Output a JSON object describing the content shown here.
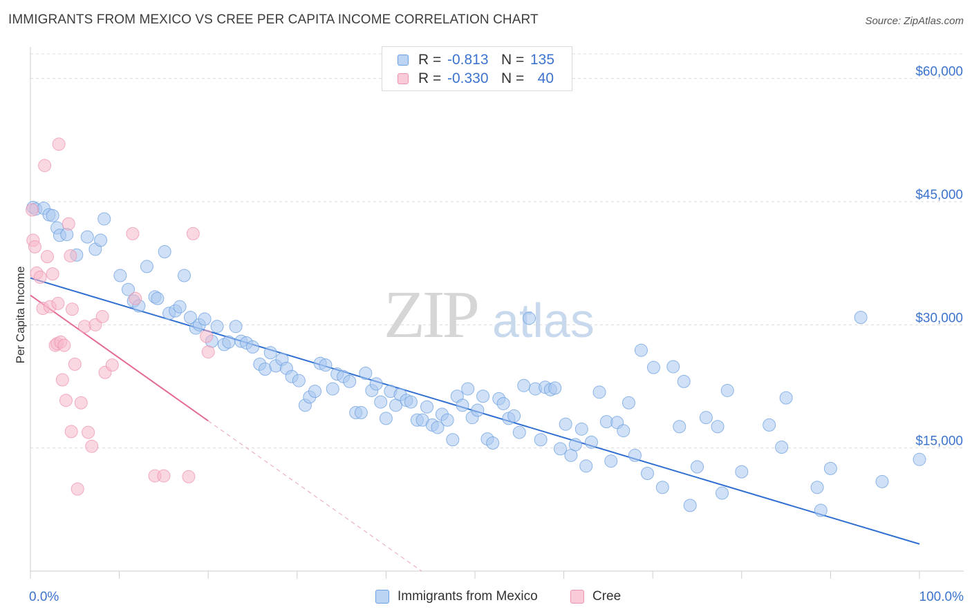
{
  "header": {
    "title": "IMMIGRANTS FROM MEXICO VS CREE PER CAPITA INCOME CORRELATION CHART",
    "source": "Source: ZipAtlas.com"
  },
  "watermark": {
    "text_zip": "ZIP",
    "text_atlas": "atlas"
  },
  "legend_top": {
    "rows": [
      {
        "r_label": "R =",
        "r_value": "-0.813",
        "n_label": "N =",
        "n_value": "135",
        "color": "#a9c8f0"
      },
      {
        "r_label": "R =",
        "r_value": "-0.330",
        "n_label": "N =",
        "n_value": "40",
        "color": "#f6b8cb"
      }
    ]
  },
  "legend_bottom": {
    "items": [
      {
        "label": "Immigrants from Mexico",
        "color": "#a9c8f0"
      },
      {
        "label": "Cree",
        "color": "#f6b8cb"
      }
    ]
  },
  "chart_data": {
    "type": "scatter",
    "title": "IMMIGRANTS FROM MEXICO VS CREE PER CAPITA INCOME CORRELATION CHART",
    "ylabel": "Per Capita Income",
    "xlabel": "",
    "xlim": [
      0,
      100
    ],
    "ylim": [
      0,
      63000
    ],
    "x_tick_labels": [
      "0.0%",
      "100.0%"
    ],
    "y_ticks": [
      15000,
      30000,
      45000,
      60000
    ],
    "y_tick_labels": [
      "$15,000",
      "$30,000",
      "$45,000",
      "$60,000"
    ],
    "grid": "horizontal dashed",
    "series": [
      {
        "name": "Immigrants from Mexico",
        "color": "#a9c8f0",
        "stroke": "#6b9fdf",
        "trend": {
          "x": [
            0,
            100
          ],
          "y": [
            35700,
            3300
          ],
          "color": "#2f6fd1"
        },
        "points": [
          [
            0.3,
            44300
          ],
          [
            0.6,
            44100
          ],
          [
            1.5,
            44200
          ],
          [
            2.1,
            43400
          ],
          [
            2.5,
            43300
          ],
          [
            3.0,
            41800
          ],
          [
            3.3,
            40900
          ],
          [
            4.1,
            41000
          ],
          [
            5.2,
            38500
          ],
          [
            6.4,
            40700
          ],
          [
            7.3,
            39200
          ],
          [
            7.9,
            40300
          ],
          [
            8.3,
            42900
          ],
          [
            10.1,
            36000
          ],
          [
            11.0,
            34300
          ],
          [
            11.6,
            32900
          ],
          [
            12.2,
            32300
          ],
          [
            13.1,
            37100
          ],
          [
            14.0,
            33400
          ],
          [
            14.3,
            33200
          ],
          [
            15.1,
            38900
          ],
          [
            15.6,
            31400
          ],
          [
            16.3,
            31700
          ],
          [
            16.8,
            32200
          ],
          [
            17.3,
            36000
          ],
          [
            18.0,
            30900
          ],
          [
            18.6,
            29600
          ],
          [
            19.0,
            30000
          ],
          [
            19.6,
            30700
          ],
          [
            20.4,
            28000
          ],
          [
            21.0,
            29800
          ],
          [
            21.8,
            27600
          ],
          [
            22.3,
            27900
          ],
          [
            23.1,
            29800
          ],
          [
            23.7,
            28000
          ],
          [
            24.3,
            27800
          ],
          [
            25.0,
            27300
          ],
          [
            25.8,
            25200
          ],
          [
            26.4,
            24600
          ],
          [
            27.0,
            26600
          ],
          [
            27.6,
            25000
          ],
          [
            28.3,
            25800
          ],
          [
            28.8,
            24700
          ],
          [
            29.4,
            23700
          ],
          [
            30.2,
            23200
          ],
          [
            30.9,
            20200
          ],
          [
            31.4,
            21200
          ],
          [
            32.0,
            21900
          ],
          [
            32.6,
            25300
          ],
          [
            33.2,
            25100
          ],
          [
            34.0,
            22200
          ],
          [
            34.5,
            24000
          ],
          [
            35.2,
            23700
          ],
          [
            35.9,
            23100
          ],
          [
            36.6,
            19300
          ],
          [
            37.2,
            19300
          ],
          [
            37.7,
            24100
          ],
          [
            38.4,
            22000
          ],
          [
            38.9,
            22800
          ],
          [
            39.4,
            20600
          ],
          [
            40.0,
            18600
          ],
          [
            40.5,
            21900
          ],
          [
            41.1,
            20200
          ],
          [
            41.6,
            21500
          ],
          [
            42.3,
            20800
          ],
          [
            42.8,
            20600
          ],
          [
            43.5,
            18400
          ],
          [
            44.1,
            18400
          ],
          [
            44.6,
            20000
          ],
          [
            45.2,
            17800
          ],
          [
            45.8,
            17500
          ],
          [
            46.3,
            19100
          ],
          [
            46.9,
            18400
          ],
          [
            47.5,
            16000
          ],
          [
            48.0,
            21300
          ],
          [
            48.6,
            20200
          ],
          [
            49.2,
            22200
          ],
          [
            49.7,
            18700
          ],
          [
            50.3,
            19600
          ],
          [
            50.9,
            21300
          ],
          [
            51.4,
            16100
          ],
          [
            52.0,
            15600
          ],
          [
            52.7,
            21000
          ],
          [
            53.2,
            20400
          ],
          [
            53.8,
            18600
          ],
          [
            54.4,
            18900
          ],
          [
            55.0,
            16900
          ],
          [
            55.5,
            22600
          ],
          [
            56.1,
            30800
          ],
          [
            56.8,
            22200
          ],
          [
            57.4,
            16000
          ],
          [
            57.9,
            22400
          ],
          [
            58.5,
            22100
          ],
          [
            59.0,
            22300
          ],
          [
            59.6,
            14900
          ],
          [
            60.2,
            17900
          ],
          [
            60.8,
            14100
          ],
          [
            61.3,
            15400
          ],
          [
            62.0,
            17300
          ],
          [
            62.5,
            12800
          ],
          [
            63.1,
            15700
          ],
          [
            64.0,
            21800
          ],
          [
            64.8,
            18200
          ],
          [
            65.3,
            13400
          ],
          [
            66.0,
            18100
          ],
          [
            66.7,
            17100
          ],
          [
            67.3,
            20500
          ],
          [
            68.0,
            14100
          ],
          [
            68.7,
            26900
          ],
          [
            69.4,
            11900
          ],
          [
            70.1,
            24800
          ],
          [
            71.1,
            10200
          ],
          [
            72.3,
            24900
          ],
          [
            73.0,
            17600
          ],
          [
            73.5,
            23100
          ],
          [
            74.2,
            8000
          ],
          [
            75.0,
            12700
          ],
          [
            76.0,
            18700
          ],
          [
            77.3,
            17600
          ],
          [
            77.8,
            9500
          ],
          [
            78.4,
            22000
          ],
          [
            80.0,
            12100
          ],
          [
            83.1,
            17800
          ],
          [
            84.5,
            15100
          ],
          [
            85.0,
            21100
          ],
          [
            88.5,
            10200
          ],
          [
            88.9,
            7400
          ],
          [
            90.0,
            12500
          ],
          [
            93.4,
            30900
          ],
          [
            100.0,
            13600
          ],
          [
            95.8,
            10900
          ]
        ]
      },
      {
        "name": "Cree",
        "color": "#f6b8cb",
        "stroke": "#ec93ae",
        "trend": {
          "x": [
            0,
            20
          ],
          "y": [
            33600,
            18300
          ],
          "color": "#e46a92",
          "dash_extension": {
            "x": [
              20,
              44
            ],
            "y": [
              18300,
              0
            ]
          }
        },
        "points": [
          [
            0.2,
            44000
          ],
          [
            0.3,
            40300
          ],
          [
            0.5,
            39500
          ],
          [
            0.7,
            36300
          ],
          [
            1.1,
            35800
          ],
          [
            1.4,
            32000
          ],
          [
            1.6,
            49400
          ],
          [
            1.9,
            38300
          ],
          [
            2.2,
            32200
          ],
          [
            2.5,
            36200
          ],
          [
            2.8,
            27500
          ],
          [
            3.0,
            27700
          ],
          [
            3.2,
            52000
          ],
          [
            3.4,
            27900
          ],
          [
            3.6,
            23300
          ],
          [
            3.8,
            27500
          ],
          [
            4.0,
            20800
          ],
          [
            4.3,
            42300
          ],
          [
            4.5,
            38400
          ],
          [
            4.7,
            31900
          ],
          [
            5.0,
            25200
          ],
          [
            5.3,
            10000
          ],
          [
            5.7,
            20500
          ],
          [
            6.1,
            29800
          ],
          [
            6.5,
            16900
          ],
          [
            6.9,
            15200
          ],
          [
            7.3,
            30000
          ],
          [
            3.1,
            32600
          ],
          [
            8.1,
            31000
          ],
          [
            8.4,
            24200
          ],
          [
            11.5,
            41100
          ],
          [
            11.8,
            33200
          ],
          [
            14.0,
            11600
          ],
          [
            15.0,
            11600
          ],
          [
            18.3,
            41100
          ],
          [
            19.8,
            28600
          ],
          [
            20.0,
            26700
          ],
          [
            17.8,
            11500
          ],
          [
            9.2,
            25100
          ],
          [
            4.6,
            17000
          ]
        ]
      }
    ]
  }
}
